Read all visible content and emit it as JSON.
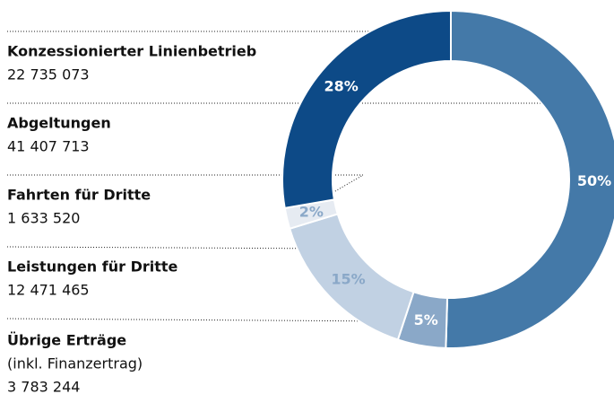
{
  "chart_data": {
    "type": "pie",
    "categories": [
      "Konzessionierter Linienbetrieb",
      "Abgeltungen",
      "Fahrten für Dritte",
      "Leistungen für Dritte",
      "Übrige Erträge"
    ],
    "note": "(inkl. Finanzertrag)",
    "values": [
      22735073,
      41407713,
      1633520,
      12471465,
      3783244
    ],
    "value_labels": [
      "22 735 073",
      "41 407 713",
      "1 633 520",
      "12 471 465",
      "3 783 244"
    ],
    "shares": [
      28,
      50,
      2,
      15,
      5
    ],
    "share_labels": [
      "28%",
      "50%",
      "2%",
      "15%",
      "5%"
    ],
    "colors": [
      "#0d4a87",
      "#4479a8",
      "#e6ebf2",
      "#c1d1e3",
      "#8aa8c8"
    ]
  }
}
